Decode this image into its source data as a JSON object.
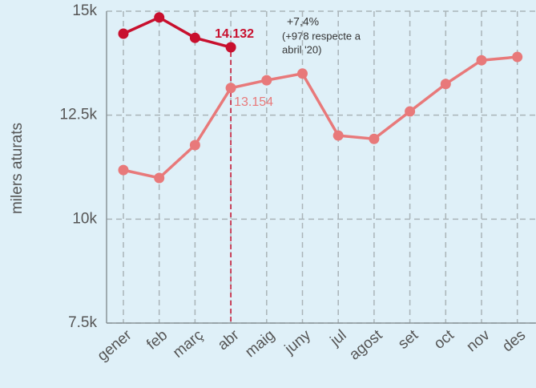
{
  "chart_data": {
    "type": "line",
    "y_label": "milers aturats",
    "categories": [
      "gener",
      "feb",
      "març",
      "abr",
      "maig",
      "juny",
      "jul",
      "agost",
      "set",
      "oct",
      "nov",
      "des"
    ],
    "series": [
      {
        "color": "#e8797a",
        "values": [
          11180,
          10990,
          11780,
          13154,
          13340,
          13500,
          12010,
          11930,
          12590,
          13250,
          13820,
          13900
        ],
        "value_labels": [
          null,
          null,
          null,
          "13.154",
          null,
          null,
          null,
          null,
          null,
          null,
          null,
          null
        ]
      },
      {
        "color": "#c8102e",
        "values": [
          14460,
          14850,
          14360,
          14132,
          null,
          null,
          null,
          null,
          null,
          null,
          null,
          null
        ],
        "value_labels": [
          null,
          null,
          null,
          "14.132",
          null,
          null,
          null,
          null,
          null,
          null,
          null,
          null
        ]
      }
    ],
    "annotation": [
      "+7,4%",
      "(+978 respecte a",
      "abril '20)"
    ],
    "ylim": [
      7500,
      15000
    ],
    "yticks": [
      {
        "value": 7500,
        "label": "7.5k"
      },
      {
        "value": 10000,
        "label": "10k"
      },
      {
        "value": 12500,
        "label": "12.5k"
      },
      {
        "value": 15000,
        "label": "15k"
      }
    ],
    "grid": true
  }
}
